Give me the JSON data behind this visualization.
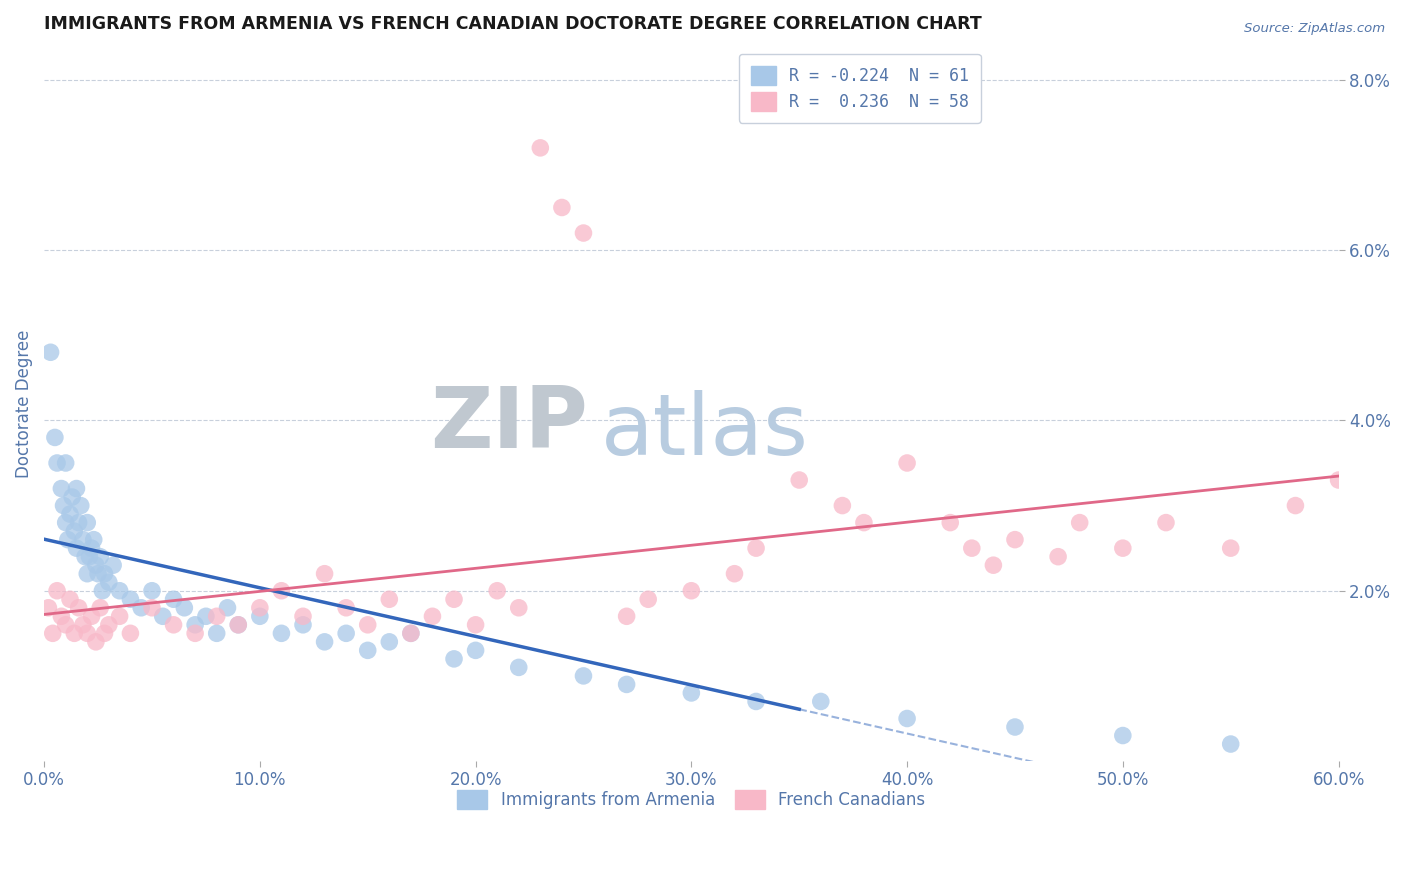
{
  "title": "IMMIGRANTS FROM ARMENIA VS FRENCH CANADIAN DOCTORATE DEGREE CORRELATION CHART",
  "source_text": "Source: ZipAtlas.com",
  "ylabel": "Doctorate Degree",
  "x_tick_labels": [
    "0.0%",
    "10.0%",
    "20.0%",
    "30.0%",
    "40.0%",
    "50.0%",
    "60.0%"
  ],
  "x_tick_values": [
    0.0,
    10.0,
    20.0,
    30.0,
    40.0,
    50.0,
    60.0
  ],
  "y_tick_labels": [
    "2.0%",
    "4.0%",
    "6.0%",
    "8.0%"
  ],
  "y_tick_values": [
    2.0,
    4.0,
    6.0,
    8.0
  ],
  "xlim": [
    0.0,
    60.0
  ],
  "ylim": [
    0.0,
    8.4
  ],
  "legend_r_blue": "-0.224",
  "legend_n_blue": "61",
  "legend_r_pink": "0.236",
  "legend_n_pink": "58",
  "legend_label_blue": "Immigrants from Armenia",
  "legend_label_pink": "French Canadians",
  "blue_color": "#a8c8e8",
  "blue_edge_color": "#88aad0",
  "blue_line_color": "#3366bb",
  "pink_color": "#f8b8c8",
  "pink_edge_color": "#e898b0",
  "pink_line_color": "#e06888",
  "grid_color": "#c8d0dc",
  "watermark_zip_color": "#c0c8d0",
  "watermark_atlas_color": "#b8cce0",
  "title_color": "#1a1a1a",
  "axis_label_color": "#5577aa",
  "tick_label_color": "#5577aa",
  "background_color": "#ffffff",
  "blue_x": [
    0.3,
    0.5,
    0.6,
    0.8,
    0.9,
    1.0,
    1.0,
    1.1,
    1.2,
    1.3,
    1.4,
    1.5,
    1.5,
    1.6,
    1.7,
    1.8,
    1.9,
    2.0,
    2.0,
    2.1,
    2.2,
    2.3,
    2.4,
    2.5,
    2.6,
    2.7,
    2.8,
    3.0,
    3.2,
    3.5,
    4.0,
    4.5,
    5.0,
    5.5,
    6.0,
    6.5,
    7.0,
    7.5,
    8.0,
    8.5,
    9.0,
    10.0,
    11.0,
    12.0,
    13.0,
    14.0,
    15.0,
    16.0,
    17.0,
    19.0,
    20.0,
    22.0,
    25.0,
    27.0,
    30.0,
    33.0,
    36.0,
    40.0,
    45.0,
    50.0,
    55.0
  ],
  "blue_y": [
    4.8,
    3.8,
    3.5,
    3.2,
    3.0,
    2.8,
    3.5,
    2.6,
    2.9,
    3.1,
    2.7,
    2.5,
    3.2,
    2.8,
    3.0,
    2.6,
    2.4,
    2.2,
    2.8,
    2.4,
    2.5,
    2.6,
    2.3,
    2.2,
    2.4,
    2.0,
    2.2,
    2.1,
    2.3,
    2.0,
    1.9,
    1.8,
    2.0,
    1.7,
    1.9,
    1.8,
    1.6,
    1.7,
    1.5,
    1.8,
    1.6,
    1.7,
    1.5,
    1.6,
    1.4,
    1.5,
    1.3,
    1.4,
    1.5,
    1.2,
    1.3,
    1.1,
    1.0,
    0.9,
    0.8,
    0.7,
    0.7,
    0.5,
    0.4,
    0.3,
    0.2
  ],
  "pink_x": [
    0.2,
    0.4,
    0.6,
    0.8,
    1.0,
    1.2,
    1.4,
    1.6,
    1.8,
    2.0,
    2.2,
    2.4,
    2.6,
    2.8,
    3.0,
    3.5,
    4.0,
    5.0,
    6.0,
    7.0,
    8.0,
    9.0,
    10.0,
    11.0,
    12.0,
    13.0,
    14.0,
    15.0,
    16.0,
    17.0,
    18.0,
    19.0,
    20.0,
    21.0,
    22.0,
    23.0,
    24.0,
    25.0,
    27.0,
    28.0,
    30.0,
    32.0,
    33.0,
    35.0,
    37.0,
    38.0,
    40.0,
    42.0,
    43.0,
    44.0,
    45.0,
    47.0,
    48.0,
    50.0,
    52.0,
    55.0,
    58.0,
    60.0
  ],
  "pink_y": [
    1.8,
    1.5,
    2.0,
    1.7,
    1.6,
    1.9,
    1.5,
    1.8,
    1.6,
    1.5,
    1.7,
    1.4,
    1.8,
    1.5,
    1.6,
    1.7,
    1.5,
    1.8,
    1.6,
    1.5,
    1.7,
    1.6,
    1.8,
    2.0,
    1.7,
    2.2,
    1.8,
    1.6,
    1.9,
    1.5,
    1.7,
    1.9,
    1.6,
    2.0,
    1.8,
    7.2,
    6.5,
    6.2,
    1.7,
    1.9,
    2.0,
    2.2,
    2.5,
    3.3,
    3.0,
    2.8,
    3.5,
    2.8,
    2.5,
    2.3,
    2.6,
    2.4,
    2.8,
    2.5,
    2.8,
    2.5,
    3.0,
    3.3
  ],
  "blue_solid_end": 35.0,
  "pink_trend_start": 0.0,
  "pink_trend_end": 60.0
}
